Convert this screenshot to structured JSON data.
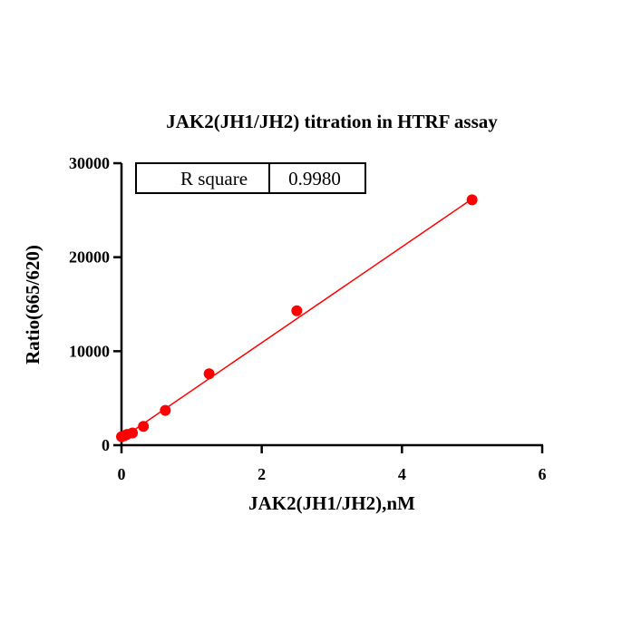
{
  "chart_data": {
    "type": "scatter",
    "title": "JAK2(JH1/JH2) titration in HTRF assay",
    "xlabel": "JAK2(JH1/JH2),nM",
    "ylabel": "Ratio(665/620)",
    "xlim": [
      0,
      6
    ],
    "ylim": [
      0,
      30000
    ],
    "x_ticks": [
      "0",
      "2",
      "4",
      "6"
    ],
    "y_ticks": [
      "0",
      "10000",
      "20000",
      "30000"
    ],
    "series": [
      {
        "x": [
          0.0,
          0.039,
          0.078,
          0.156,
          0.3125,
          0.625,
          1.25,
          2.5,
          5.0
        ],
        "y": [
          900,
          1000,
          1150,
          1300,
          2000,
          3700,
          7600,
          14300,
          26100
        ],
        "color": "#ff0000"
      }
    ],
    "fit_line": {
      "x": [
        0,
        5.0
      ],
      "y": [
        700,
        26200
      ],
      "color": "#ff0000"
    },
    "stats_box": {
      "label": "R square",
      "value": "0.9980"
    },
    "grid": false
  }
}
